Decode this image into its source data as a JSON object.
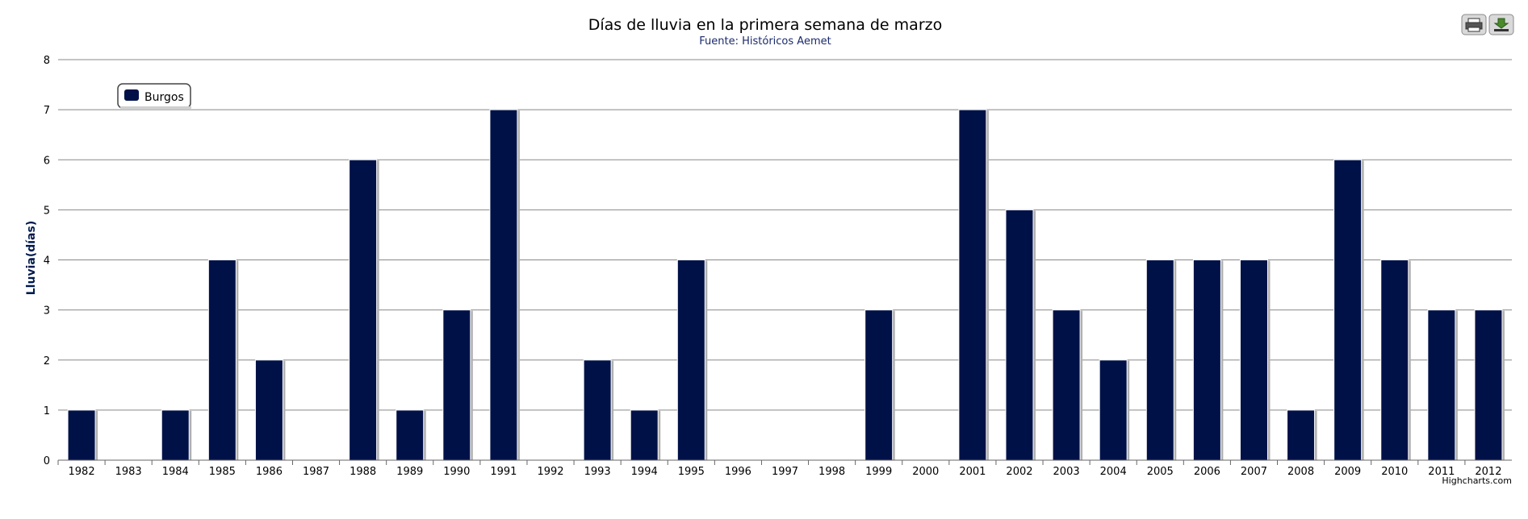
{
  "toolbar": {
    "print_icon": "printer-icon",
    "export_icon": "download-icon"
  },
  "credits": "Highcharts.com",
  "colors": {
    "bar": "#001148",
    "shadow": "#b0b0b0",
    "grid": "#888888"
  },
  "chart_data": {
    "type": "bar",
    "title": "Días de lluvia en la primera semana de marzo",
    "subtitle": "Fuente: Históricos Aemet",
    "xlabel": "",
    "ylabel": "Lluvia(días)",
    "ylim": [
      0,
      8
    ],
    "yticks": [
      0,
      1,
      2,
      3,
      4,
      5,
      6,
      7,
      8
    ],
    "grid": true,
    "legend_position": "top-left",
    "categories": [
      "1982",
      "1983",
      "1984",
      "1985",
      "1986",
      "1987",
      "1988",
      "1989",
      "1990",
      "1991",
      "1992",
      "1993",
      "1994",
      "1995",
      "1996",
      "1997",
      "1998",
      "1999",
      "2000",
      "2001",
      "2002",
      "2003",
      "2004",
      "2005",
      "2006",
      "2007",
      "2008",
      "2009",
      "2010",
      "2011",
      "2012"
    ],
    "series": [
      {
        "name": "Burgos",
        "values": [
          1,
          0,
          1,
          4,
          2,
          0,
          6,
          1,
          3,
          7,
          0,
          2,
          1,
          4,
          0,
          0,
          0,
          3,
          0,
          7,
          5,
          3,
          2,
          4,
          4,
          4,
          1,
          6,
          4,
          3,
          3
        ]
      }
    ]
  }
}
